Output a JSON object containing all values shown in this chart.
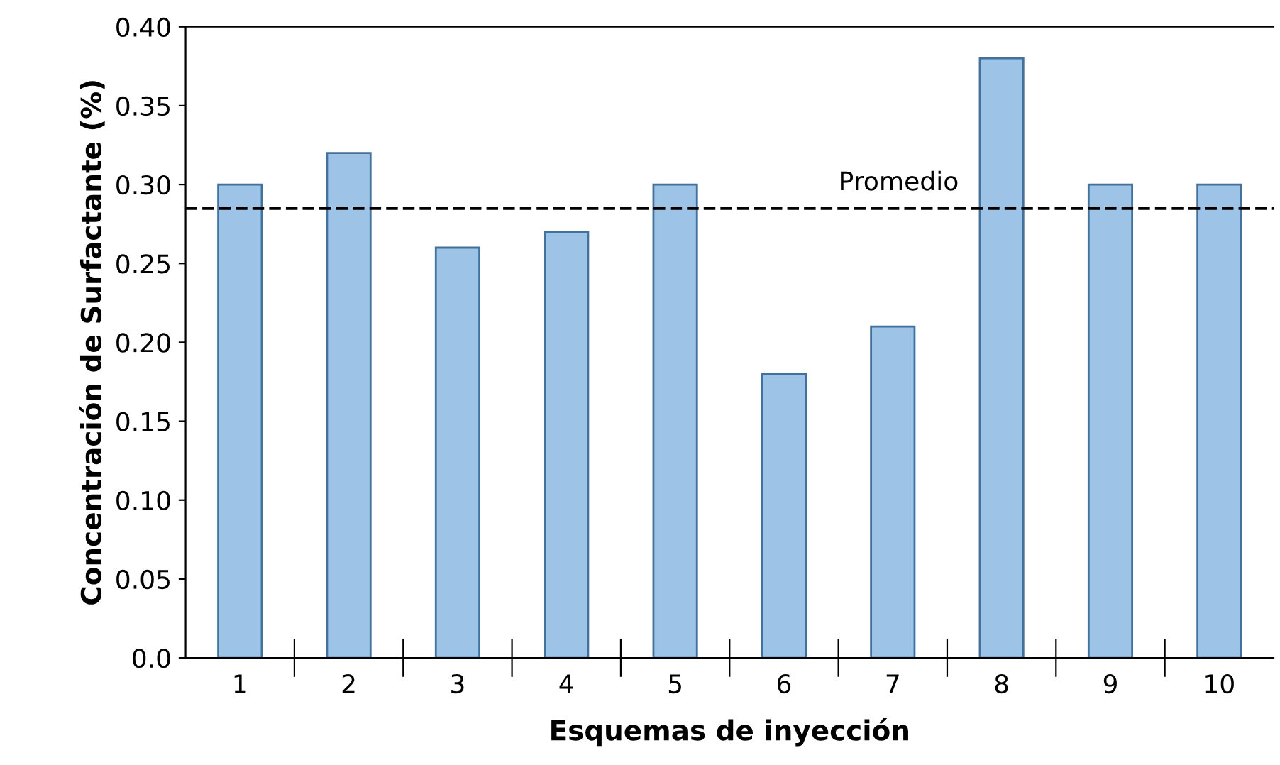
{
  "chart_data": {
    "type": "bar",
    "xlabel": "Esquemas de inyección",
    "ylabel": "Concentración de Surfactante (%)",
    "categories": [
      "1",
      "2",
      "3",
      "4",
      "5",
      "6",
      "7",
      "8",
      "9",
      "10"
    ],
    "values": [
      0.3,
      0.32,
      0.26,
      0.27,
      0.3,
      0.18,
      0.21,
      0.38,
      0.3,
      0.3
    ],
    "color": "#9dc3e6",
    "ylim": [
      0,
      0.4
    ],
    "yticks": [
      {
        "value": 0,
        "label": "0.0"
      },
      {
        "value": 0.05,
        "label": "0.05"
      },
      {
        "value": 0.1,
        "label": "0.10"
      },
      {
        "value": 0.15,
        "label": "0.15"
      },
      {
        "value": 0.2,
        "label": "0.20"
      },
      {
        "value": 0.25,
        "label": "0.25"
      },
      {
        "value": 0.3,
        "label": "0.30"
      },
      {
        "value": 0.35,
        "label": "0.35"
      },
      {
        "value": 0.4,
        "label": "0.40"
      }
    ],
    "ref_lines": [
      {
        "axis": "y",
        "value": 0.285,
        "label": "Promedio",
        "color": "#000000",
        "line_style": "dashed"
      }
    ],
    "grid": false,
    "legend": false
  }
}
